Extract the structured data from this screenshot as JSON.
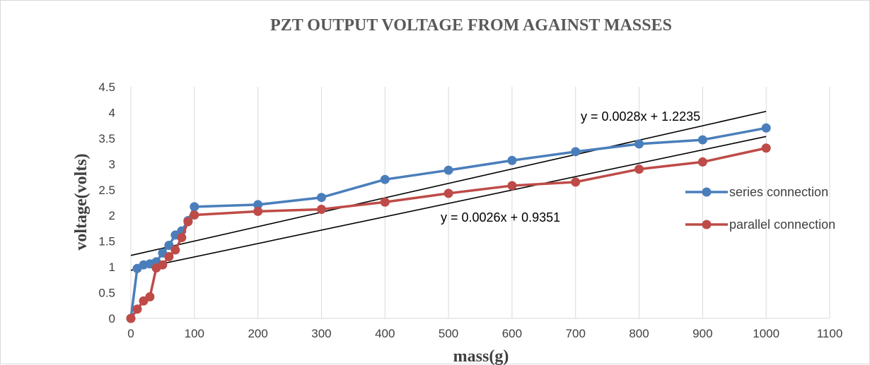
{
  "chart_data": {
    "type": "line",
    "title": "PZT  OUTPUT VOLTAGE FROM AGAINST MASSES",
    "xlabel": "mass(g)",
    "ylabel": "voltage(volts)",
    "xlim": [
      0,
      1100
    ],
    "ylim": [
      0,
      4.5
    ],
    "x_ticks": [
      "0",
      "100",
      "200",
      "300",
      "400",
      "500",
      "600",
      "700",
      "800",
      "900",
      "1000",
      "1100"
    ],
    "y_ticks": [
      "0",
      "0.5",
      "1",
      "1.5",
      "2",
      "2.5",
      "3",
      "3.5",
      "4",
      "4.5"
    ],
    "grid": "vertical",
    "legend_position": "right",
    "series": [
      {
        "name": "series connection",
        "color": "#4a7ebb",
        "x": [
          0,
          10,
          20,
          30,
          40,
          50,
          60,
          70,
          80,
          90,
          100,
          200,
          300,
          400,
          500,
          600,
          700,
          800,
          900,
          1000
        ],
        "y": [
          0,
          0.97,
          1.04,
          1.06,
          1.1,
          1.27,
          1.42,
          1.62,
          1.7,
          1.9,
          2.17,
          2.21,
          2.35,
          2.7,
          2.88,
          3.07,
          3.24,
          3.39,
          3.47,
          3.7
        ]
      },
      {
        "name": "parallel connection",
        "color": "#be4b48",
        "x": [
          0,
          10,
          20,
          30,
          40,
          50,
          60,
          70,
          80,
          90,
          100,
          200,
          300,
          400,
          500,
          600,
          700,
          800,
          900,
          1000
        ],
        "y": [
          0,
          0.18,
          0.34,
          0.42,
          0.98,
          1.04,
          1.2,
          1.33,
          1.57,
          1.88,
          2.01,
          2.08,
          2.12,
          2.26,
          2.43,
          2.58,
          2.65,
          2.9,
          3.04,
          3.31
        ]
      }
    ],
    "trendlines": [
      {
        "equation": "y = 0.0028x + 1.2235",
        "slope": 0.0028,
        "intercept": 1.2235,
        "color": "#000000"
      },
      {
        "equation": "y = 0.0026x + 0.9351",
        "slope": 0.0026,
        "intercept": 0.9351,
        "color": "#000000"
      }
    ]
  }
}
